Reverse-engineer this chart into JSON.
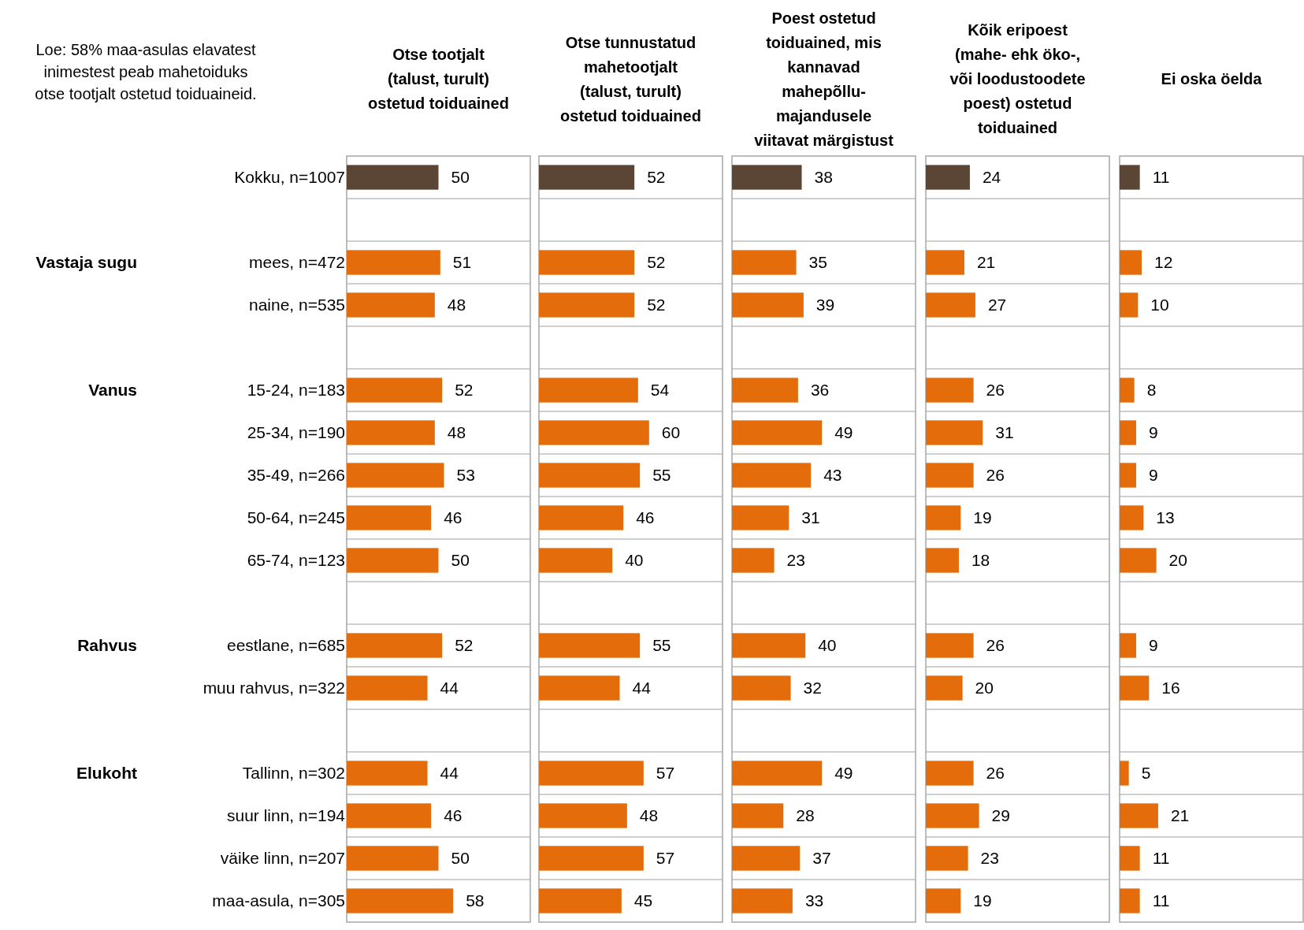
{
  "chart_data": [
    {
      "type": "bar",
      "orientation": "horizontal",
      "title": "Otse tootjalt\n(talust, turult)\nostetud toiduained",
      "categories": [
        "Kokku, n=1007",
        null,
        "mees, n=472",
        "naine, n=535",
        null,
        "15-24, n=183",
        "25-34, n=190",
        "35-49, n=266",
        "50-64, n=245",
        "65-74, n=123",
        null,
        "eestlane, n=685",
        "muu rahvus, n=322",
        null,
        "Tallinn, n=302",
        "suur linn, n=194",
        "väike linn, n=207",
        "maa-asula, n=305"
      ],
      "values": [
        50,
        null,
        51,
        48,
        null,
        52,
        48,
        53,
        46,
        50,
        null,
        52,
        44,
        null,
        44,
        46,
        50,
        58
      ],
      "colors": [
        "#5b4636",
        null,
        "#e46c0a",
        "#e46c0a",
        null,
        "#e46c0a",
        "#e46c0a",
        "#e46c0a",
        "#e46c0a",
        "#e46c0a",
        null,
        "#e46c0a",
        "#e46c0a",
        null,
        "#e46c0a",
        "#e46c0a",
        "#e46c0a",
        "#e46c0a"
      ],
      "xlim": [
        0,
        100
      ],
      "data_labels": true,
      "grid": "y",
      "tick_labels": "y",
      "annotations": [
        "Loe: 58% maa-asulas elavatest\ninimestest peab mahetoiduks\notse tootjalt ostetud toiduaineid.",
        "Vastaja sugu",
        "Vanus",
        "Rahvus",
        "Elukoht"
      ]
    },
    {
      "type": "bar",
      "orientation": "horizontal",
      "title": "Otse tunnustatud\nmahetootjalt\n(talust, turult)\nostetud toiduained",
      "values": [
        52,
        null,
        52,
        52,
        null,
        54,
        60,
        55,
        46,
        40,
        null,
        55,
        44,
        null,
        57,
        48,
        57,
        45
      ],
      "colors": [
        "#5b4636",
        null,
        "#e46c0a",
        "#e46c0a",
        null,
        "#e46c0a",
        "#e46c0a",
        "#e46c0a",
        "#e46c0a",
        "#e46c0a",
        null,
        "#e46c0a",
        "#e46c0a",
        null,
        "#e46c0a",
        "#e46c0a",
        "#e46c0a",
        "#e46c0a"
      ],
      "xlim": [
        0,
        100
      ],
      "data_labels": true,
      "grid": "y",
      "tick_labels": false
    },
    {
      "type": "bar",
      "orientation": "horizontal",
      "title": "Poest ostetud\ntoiduained, mis\nkannavad\nmahepõllu-\nmajandusele\nviitavat märgistust",
      "values": [
        38,
        null,
        35,
        39,
        null,
        36,
        49,
        43,
        31,
        23,
        null,
        40,
        32,
        null,
        49,
        28,
        37,
        33
      ],
      "colors": [
        "#5b4636",
        null,
        "#e46c0a",
        "#e46c0a",
        null,
        "#e46c0a",
        "#e46c0a",
        "#e46c0a",
        "#e46c0a",
        "#e46c0a",
        null,
        "#e46c0a",
        "#e46c0a",
        null,
        "#e46c0a",
        "#e46c0a",
        "#e46c0a",
        "#e46c0a"
      ],
      "xlim": [
        0,
        100
      ],
      "data_labels": true,
      "grid": "y",
      "tick_labels": false
    },
    {
      "type": "bar",
      "orientation": "horizontal",
      "title": "Kõik eripoest\n(mahe- ehk öko-,\nvõi loodustoodete\npoest) ostetud\ntoiduained",
      "values": [
        24,
        null,
        21,
        27,
        null,
        26,
        31,
        26,
        19,
        18,
        null,
        26,
        20,
        null,
        26,
        29,
        23,
        19
      ],
      "colors": [
        "#5b4636",
        null,
        "#e46c0a",
        "#e46c0a",
        null,
        "#e46c0a",
        "#e46c0a",
        "#e46c0a",
        "#e46c0a",
        "#e46c0a",
        null,
        "#e46c0a",
        "#e46c0a",
        null,
        "#e46c0a",
        "#e46c0a",
        "#e46c0a",
        "#e46c0a"
      ],
      "xlim": [
        0,
        100
      ],
      "data_labels": true,
      "grid": "y",
      "tick_labels": false
    },
    {
      "type": "bar",
      "orientation": "horizontal",
      "title": "Ei oska öelda",
      "values": [
        11,
        null,
        12,
        10,
        null,
        8,
        9,
        9,
        13,
        20,
        null,
        9,
        16,
        null,
        5,
        21,
        11,
        11
      ],
      "colors": [
        "#5b4636",
        null,
        "#e46c0a",
        "#e46c0a",
        null,
        "#e46c0a",
        "#e46c0a",
        "#e46c0a",
        "#e46c0a",
        "#e46c0a",
        null,
        "#e46c0a",
        "#e46c0a",
        null,
        "#e46c0a",
        "#e46c0a",
        "#e46c0a",
        "#e46c0a"
      ],
      "xlim": [
        0,
        100
      ],
      "data_labels": true,
      "grid": "y",
      "tick_labels": false
    }
  ]
}
